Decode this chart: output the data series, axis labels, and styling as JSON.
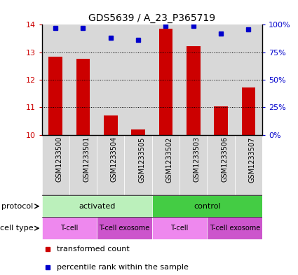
{
  "title": "GDS5639 / A_23_P365719",
  "samples": [
    "GSM1233500",
    "GSM1233501",
    "GSM1233504",
    "GSM1233505",
    "GSM1233502",
    "GSM1233503",
    "GSM1233506",
    "GSM1233507"
  ],
  "red_values": [
    12.85,
    12.75,
    10.7,
    10.2,
    13.85,
    13.22,
    11.02,
    11.72
  ],
  "blue_values": [
    97,
    97,
    88,
    86,
    99,
    99,
    92,
    96
  ],
  "ylim_left": [
    10,
    14
  ],
  "ylim_right": [
    0,
    100
  ],
  "yticks_left": [
    10,
    11,
    12,
    13,
    14
  ],
  "yticks_right": [
    0,
    25,
    50,
    75,
    100
  ],
  "ytick_labels_right": [
    "0%",
    "25%",
    "50%",
    "75%",
    "100%"
  ],
  "bar_color": "#cc0000",
  "dot_color": "#0000cc",
  "bar_width": 0.5,
  "protocol_labels": [
    "activated",
    "control"
  ],
  "protocol_ranges": [
    [
      0,
      4
    ],
    [
      4,
      8
    ]
  ],
  "protocol_colors": [
    "#bbf0bb",
    "#44cc44"
  ],
  "cell_type_labels": [
    "T-cell",
    "T-cell exosome",
    "T-cell",
    "T-cell exosome"
  ],
  "cell_type_ranges": [
    [
      0,
      2
    ],
    [
      2,
      4
    ],
    [
      4,
      6
    ],
    [
      6,
      8
    ]
  ],
  "cell_type_colors": [
    "#ee88ee",
    "#cc55cc",
    "#ee88ee",
    "#cc55cc"
  ],
  "legend_red": "transformed count",
  "legend_blue": "percentile rank within the sample",
  "protocol_label": "protocol",
  "cell_type_label": "cell type",
  "title_fontsize": 10,
  "tick_fontsize": 8,
  "annot_fontsize": 8,
  "label_fontsize": 7
}
